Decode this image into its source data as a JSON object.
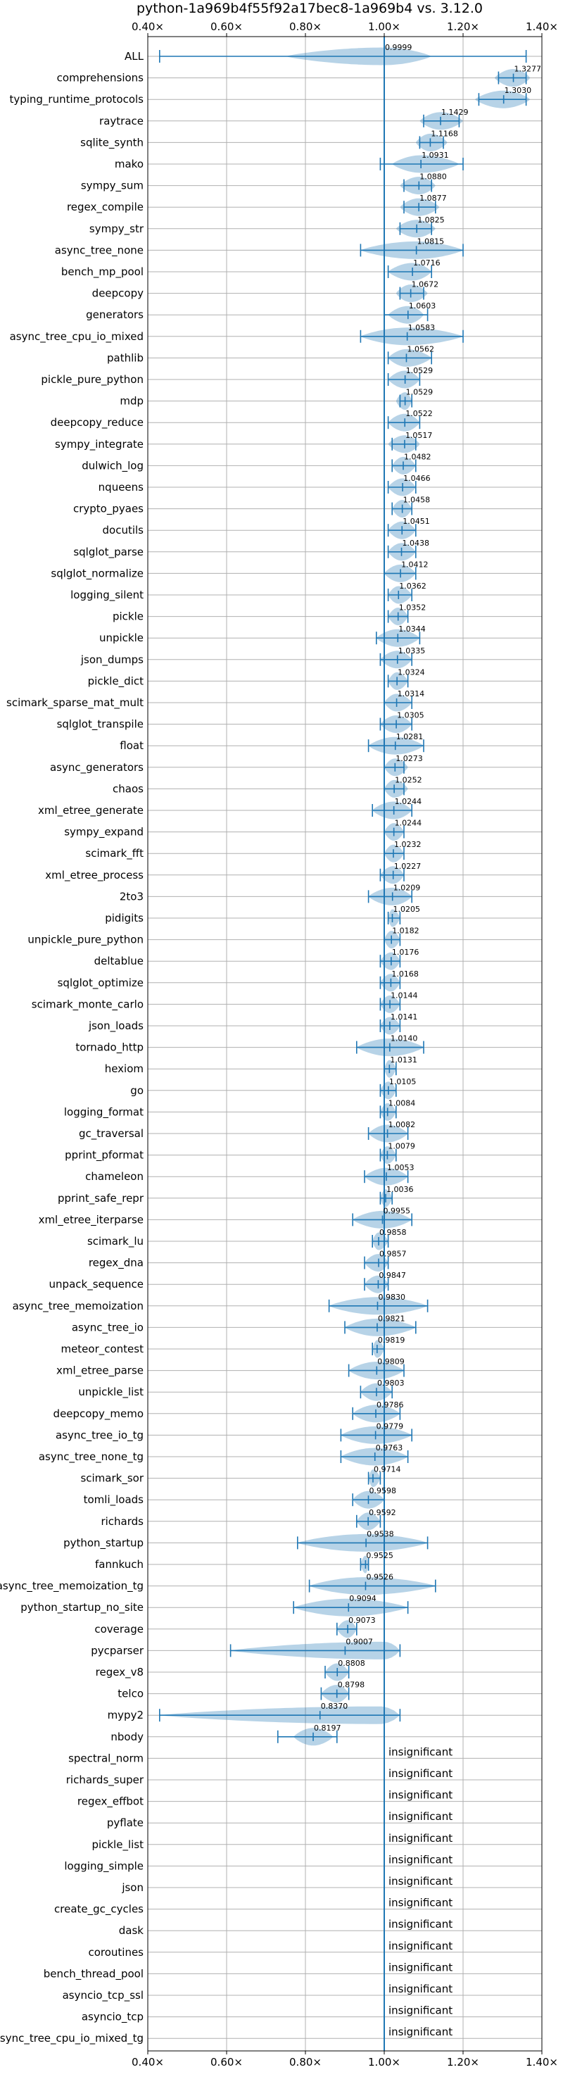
{
  "chart_data": {
    "type": "violin",
    "title": "python-1a969b4f55f92a17bec8-1a969b4 vs. 3.12.0",
    "xlim": [
      0.4,
      1.4
    ],
    "x_ticks": [
      0.4,
      0.6,
      0.8,
      1.0,
      1.2,
      1.4
    ],
    "x_tick_labels": [
      "0.40×",
      "0.60×",
      "0.80×",
      "1.00×",
      "1.20×",
      "1.40×"
    ],
    "reference_line": 1.0,
    "grid": true,
    "color": "#1f77b4",
    "insignificant_text": "insignificant",
    "benchmarks": [
      {
        "name": "ALL",
        "value": 0.9999,
        "label": "0.9999",
        "min": 0.43,
        "max": 1.36,
        "violin_lo": 0.75,
        "violin_hi": 1.12,
        "peak": 0.999
      },
      {
        "name": "comprehensions",
        "value": 1.3277,
        "label": "1.3277",
        "min": 1.29,
        "max": 1.36,
        "violin_lo": 1.28,
        "violin_hi": 1.37
      },
      {
        "name": "typing_runtime_protocols",
        "value": 1.303,
        "label": "1.3030",
        "min": 1.24,
        "max": 1.36,
        "violin_lo": 1.23,
        "violin_hi": 1.37
      },
      {
        "name": "raytrace",
        "value": 1.1429,
        "label": "1.1429",
        "min": 1.1,
        "max": 1.19,
        "violin_lo": 1.09,
        "violin_hi": 1.2
      },
      {
        "name": "sqlite_synth",
        "value": 1.1168,
        "label": "1.1168",
        "min": 1.09,
        "max": 1.15,
        "violin_lo": 1.08,
        "violin_hi": 1.16
      },
      {
        "name": "mako",
        "value": 1.0931,
        "label": "1.0931",
        "min": 0.99,
        "max": 1.2,
        "violin_lo": 1.02,
        "violin_hi": 1.19
      },
      {
        "name": "sympy_sum",
        "value": 1.088,
        "label": "1.0880",
        "min": 1.05,
        "max": 1.12,
        "violin_lo": 1.04,
        "violin_hi": 1.13
      },
      {
        "name": "regex_compile",
        "value": 1.0877,
        "label": "1.0877",
        "min": 1.05,
        "max": 1.13,
        "violin_lo": 1.04,
        "violin_hi": 1.14
      },
      {
        "name": "sympy_str",
        "value": 1.0825,
        "label": "1.0825",
        "min": 1.04,
        "max": 1.12,
        "violin_lo": 1.03,
        "violin_hi": 1.13
      },
      {
        "name": "async_tree_none",
        "value": 1.0815,
        "label": "1.0815",
        "min": 0.94,
        "max": 1.2,
        "violin_lo": 0.94,
        "violin_hi": 1.2
      },
      {
        "name": "bench_mp_pool",
        "value": 1.0716,
        "label": "1.0716",
        "min": 1.01,
        "max": 1.12,
        "violin_lo": 1.01,
        "violin_hi": 1.12
      },
      {
        "name": "deepcopy",
        "value": 1.0672,
        "label": "1.0672",
        "min": 1.04,
        "max": 1.1,
        "violin_lo": 1.03,
        "violin_hi": 1.11
      },
      {
        "name": "generators",
        "value": 1.0603,
        "label": "1.0603",
        "min": 1.0,
        "max": 1.11,
        "violin_lo": 1.01,
        "violin_hi": 1.1
      },
      {
        "name": "async_tree_cpu_io_mixed",
        "value": 1.0583,
        "label": "1.0583",
        "min": 0.94,
        "max": 1.2,
        "violin_lo": 0.94,
        "violin_hi": 1.2
      },
      {
        "name": "pathlib",
        "value": 1.0562,
        "label": "1.0562",
        "min": 1.01,
        "max": 1.12,
        "violin_lo": 1.01,
        "violin_hi": 1.12
      },
      {
        "name": "pickle_pure_python",
        "value": 1.0529,
        "label": "1.0529",
        "min": 1.01,
        "max": 1.09,
        "violin_lo": 1.01,
        "violin_hi": 1.09
      },
      {
        "name": "mdp",
        "value": 1.0529,
        "label": "1.0529",
        "min": 1.04,
        "max": 1.07,
        "violin_lo": 1.03,
        "violin_hi": 1.07
      },
      {
        "name": "deepcopy_reduce",
        "value": 1.0522,
        "label": "1.0522",
        "min": 1.01,
        "max": 1.09,
        "violin_lo": 1.01,
        "violin_hi": 1.09
      },
      {
        "name": "sympy_integrate",
        "value": 1.0517,
        "label": "1.0517",
        "min": 1.02,
        "max": 1.08,
        "violin_lo": 1.01,
        "violin_hi": 1.09
      },
      {
        "name": "dulwich_log",
        "value": 1.0482,
        "label": "1.0482",
        "min": 1.02,
        "max": 1.08,
        "violin_lo": 1.02,
        "violin_hi": 1.08
      },
      {
        "name": "nqueens",
        "value": 1.0466,
        "label": "1.0466",
        "min": 1.01,
        "max": 1.08,
        "violin_lo": 1.01,
        "violin_hi": 1.08
      },
      {
        "name": "crypto_pyaes",
        "value": 1.0458,
        "label": "1.0458",
        "min": 1.02,
        "max": 1.07,
        "violin_lo": 1.02,
        "violin_hi": 1.07
      },
      {
        "name": "docutils",
        "value": 1.0451,
        "label": "1.0451",
        "min": 1.01,
        "max": 1.08,
        "violin_lo": 1.01,
        "violin_hi": 1.08
      },
      {
        "name": "sqlglot_parse",
        "value": 1.0438,
        "label": "1.0438",
        "min": 1.01,
        "max": 1.08,
        "violin_lo": 1.01,
        "violin_hi": 1.08
      },
      {
        "name": "sqlglot_normalize",
        "value": 1.0412,
        "label": "1.0412",
        "min": 1.0,
        "max": 1.08,
        "violin_lo": 1.0,
        "violin_hi": 1.08
      },
      {
        "name": "logging_silent",
        "value": 1.0362,
        "label": "1.0362",
        "min": 1.01,
        "max": 1.07,
        "violin_lo": 1.01,
        "violin_hi": 1.07
      },
      {
        "name": "pickle",
        "value": 1.0352,
        "label": "1.0352",
        "min": 1.01,
        "max": 1.06,
        "violin_lo": 1.01,
        "violin_hi": 1.06
      },
      {
        "name": "unpickle",
        "value": 1.0344,
        "label": "1.0344",
        "min": 0.98,
        "max": 1.09,
        "violin_lo": 0.98,
        "violin_hi": 1.09
      },
      {
        "name": "json_dumps",
        "value": 1.0335,
        "label": "1.0335",
        "min": 0.99,
        "max": 1.07,
        "violin_lo": 0.99,
        "violin_hi": 1.07
      },
      {
        "name": "pickle_dict",
        "value": 1.0324,
        "label": "1.0324",
        "min": 1.01,
        "max": 1.06,
        "violin_lo": 1.01,
        "violin_hi": 1.06
      },
      {
        "name": "scimark_sparse_mat_mult",
        "value": 1.0314,
        "label": "1.0314",
        "min": 1.0,
        "max": 1.07,
        "violin_lo": 1.0,
        "violin_hi": 1.07
      },
      {
        "name": "sqlglot_transpile",
        "value": 1.0305,
        "label": "1.0305",
        "min": 0.99,
        "max": 1.07,
        "violin_lo": 0.99,
        "violin_hi": 1.07
      },
      {
        "name": "float",
        "value": 1.0281,
        "label": "1.0281",
        "min": 0.96,
        "max": 1.1,
        "violin_lo": 0.96,
        "violin_hi": 1.1
      },
      {
        "name": "async_generators",
        "value": 1.0273,
        "label": "1.0273",
        "min": 1.0,
        "max": 1.05,
        "violin_lo": 1.0,
        "violin_hi": 1.06
      },
      {
        "name": "chaos",
        "value": 1.0252,
        "label": "1.0252",
        "min": 1.0,
        "max": 1.05,
        "violin_lo": 1.0,
        "violin_hi": 1.06
      },
      {
        "name": "xml_etree_generate",
        "value": 1.0244,
        "label": "1.0244",
        "min": 0.97,
        "max": 1.07,
        "violin_lo": 0.97,
        "violin_hi": 1.07
      },
      {
        "name": "sympy_expand",
        "value": 1.0244,
        "label": "1.0244",
        "min": 1.0,
        "max": 1.05,
        "violin_lo": 1.0,
        "violin_hi": 1.05
      },
      {
        "name": "scimark_fft",
        "value": 1.0232,
        "label": "1.0232",
        "min": 1.0,
        "max": 1.05,
        "violin_lo": 1.0,
        "violin_hi": 1.05
      },
      {
        "name": "xml_etree_process",
        "value": 1.0227,
        "label": "1.0227",
        "min": 0.99,
        "max": 1.05,
        "violin_lo": 0.99,
        "violin_hi": 1.05
      },
      {
        "name": "2to3",
        "value": 1.0209,
        "label": "1.0209",
        "min": 0.96,
        "max": 1.07,
        "violin_lo": 0.96,
        "violin_hi": 1.07
      },
      {
        "name": "pidigits",
        "value": 1.0205,
        "label": "1.0205",
        "min": 1.01,
        "max": 1.04,
        "violin_lo": 1.01,
        "violin_hi": 1.04
      },
      {
        "name": "unpickle_pure_python",
        "value": 1.0182,
        "label": "1.0182",
        "min": 1.0,
        "max": 1.04,
        "violin_lo": 1.0,
        "violin_hi": 1.04
      },
      {
        "name": "deltablue",
        "value": 1.0176,
        "label": "1.0176",
        "min": 0.99,
        "max": 1.04,
        "violin_lo": 0.99,
        "violin_hi": 1.04
      },
      {
        "name": "sqlglot_optimize",
        "value": 1.0168,
        "label": "1.0168",
        "min": 0.99,
        "max": 1.04,
        "violin_lo": 0.99,
        "violin_hi": 1.04
      },
      {
        "name": "scimark_monte_carlo",
        "value": 1.0144,
        "label": "1.0144",
        "min": 0.99,
        "max": 1.04,
        "violin_lo": 0.99,
        "violin_hi": 1.04
      },
      {
        "name": "json_loads",
        "value": 1.0141,
        "label": "1.0141",
        "min": 0.99,
        "max": 1.04,
        "violin_lo": 0.99,
        "violin_hi": 1.04
      },
      {
        "name": "tornado_http",
        "value": 1.014,
        "label": "1.0140",
        "min": 0.93,
        "max": 1.1,
        "violin_lo": 0.93,
        "violin_hi": 1.1
      },
      {
        "name": "hexiom",
        "value": 1.0131,
        "label": "1.0131",
        "min": 1.0,
        "max": 1.03,
        "violin_lo": 1.0,
        "violin_hi": 1.03
      },
      {
        "name": "go",
        "value": 1.0105,
        "label": "1.0105",
        "min": 0.99,
        "max": 1.03,
        "violin_lo": 0.99,
        "violin_hi": 1.03
      },
      {
        "name": "logging_format",
        "value": 1.0084,
        "label": "1.0084",
        "min": 0.99,
        "max": 1.03,
        "violin_lo": 0.99,
        "violin_hi": 1.03
      },
      {
        "name": "gc_traversal",
        "value": 1.0082,
        "label": "1.0082",
        "min": 0.96,
        "max": 1.06,
        "violin_lo": 0.96,
        "violin_hi": 1.06
      },
      {
        "name": "pprint_pformat",
        "value": 1.0079,
        "label": "1.0079",
        "min": 0.99,
        "max": 1.03,
        "violin_lo": 0.99,
        "violin_hi": 1.03
      },
      {
        "name": "chameleon",
        "value": 1.0053,
        "label": "1.0053",
        "min": 0.95,
        "max": 1.06,
        "violin_lo": 0.95,
        "violin_hi": 1.06
      },
      {
        "name": "pprint_safe_repr",
        "value": 1.0036,
        "label": "1.0036",
        "min": 0.99,
        "max": 1.02,
        "violin_lo": 0.99,
        "violin_hi": 1.02
      },
      {
        "name": "xml_etree_iterparse",
        "value": 0.9955,
        "label": "0.9955",
        "min": 0.92,
        "max": 1.07,
        "violin_lo": 0.92,
        "violin_hi": 1.07
      },
      {
        "name": "scimark_lu",
        "value": 0.9858,
        "label": "0.9858",
        "min": 0.97,
        "max": 1.01,
        "violin_lo": 0.97,
        "violin_hi": 1.01
      },
      {
        "name": "regex_dna",
        "value": 0.9857,
        "label": "0.9857",
        "min": 0.95,
        "max": 1.01,
        "violin_lo": 0.95,
        "violin_hi": 1.01
      },
      {
        "name": "unpack_sequence",
        "value": 0.9847,
        "label": "0.9847",
        "min": 0.95,
        "max": 1.01,
        "violin_lo": 0.95,
        "violin_hi": 1.01
      },
      {
        "name": "async_tree_memoization",
        "value": 0.983,
        "label": "0.9830",
        "min": 0.86,
        "max": 1.11,
        "violin_lo": 0.86,
        "violin_hi": 1.11
      },
      {
        "name": "async_tree_io",
        "value": 0.9821,
        "label": "0.9821",
        "min": 0.9,
        "max": 1.08,
        "violin_lo": 0.9,
        "violin_hi": 1.08
      },
      {
        "name": "meteor_contest",
        "value": 0.9819,
        "label": "0.9819",
        "min": 0.97,
        "max": 1.0,
        "violin_lo": 0.97,
        "violin_hi": 1.0
      },
      {
        "name": "xml_etree_parse",
        "value": 0.9809,
        "label": "0.9809",
        "min": 0.91,
        "max": 1.05,
        "violin_lo": 0.91,
        "violin_hi": 1.05
      },
      {
        "name": "unpickle_list",
        "value": 0.9803,
        "label": "0.9803",
        "min": 0.94,
        "max": 1.02,
        "violin_lo": 0.94,
        "violin_hi": 1.02
      },
      {
        "name": "deepcopy_memo",
        "value": 0.9786,
        "label": "0.9786",
        "min": 0.92,
        "max": 1.04,
        "violin_lo": 0.92,
        "violin_hi": 1.04
      },
      {
        "name": "async_tree_io_tg",
        "value": 0.9779,
        "label": "0.9779",
        "min": 0.89,
        "max": 1.07,
        "violin_lo": 0.89,
        "violin_hi": 1.07
      },
      {
        "name": "async_tree_none_tg",
        "value": 0.9763,
        "label": "0.9763",
        "min": 0.89,
        "max": 1.06,
        "violin_lo": 0.89,
        "violin_hi": 1.06
      },
      {
        "name": "scimark_sor",
        "value": 0.9714,
        "label": "0.9714",
        "min": 0.96,
        "max": 0.99,
        "violin_lo": 0.96,
        "violin_hi": 0.99
      },
      {
        "name": "tomli_loads",
        "value": 0.9598,
        "label": "0.9598",
        "min": 0.92,
        "max": 1.0,
        "violin_lo": 0.92,
        "violin_hi": 1.0
      },
      {
        "name": "richards",
        "value": 0.9592,
        "label": "0.9592",
        "min": 0.93,
        "max": 0.99,
        "violin_lo": 0.93,
        "violin_hi": 0.99
      },
      {
        "name": "python_startup",
        "value": 0.9538,
        "label": "0.9538",
        "min": 0.78,
        "max": 1.11,
        "violin_lo": 0.78,
        "violin_hi": 1.11
      },
      {
        "name": "fannkuch",
        "value": 0.9525,
        "label": "0.9525",
        "min": 0.94,
        "max": 0.96,
        "violin_lo": 0.94,
        "violin_hi": 0.96
      },
      {
        "name": "async_tree_memoization_tg",
        "value": 0.9526,
        "label": "0.9526",
        "min": 0.81,
        "max": 1.13,
        "violin_lo": 0.81,
        "violin_hi": 1.13
      },
      {
        "name": "python_startup_no_site",
        "value": 0.9094,
        "label": "0.9094",
        "min": 0.77,
        "max": 1.06,
        "violin_lo": 0.77,
        "violin_hi": 1.06
      },
      {
        "name": "coverage",
        "value": 0.9073,
        "label": "0.9073",
        "min": 0.88,
        "max": 0.93,
        "violin_lo": 0.88,
        "violin_hi": 0.93
      },
      {
        "name": "pycparser",
        "value": 0.9007,
        "label": "0.9007",
        "min": 0.61,
        "max": 1.04,
        "violin_lo": 0.61,
        "violin_hi": 1.04,
        "peak": 1.0
      },
      {
        "name": "regex_v8",
        "value": 0.8808,
        "label": "0.8808",
        "min": 0.85,
        "max": 0.91,
        "violin_lo": 0.85,
        "violin_hi": 0.91
      },
      {
        "name": "telco",
        "value": 0.8798,
        "label": "0.8798",
        "min": 0.84,
        "max": 0.91,
        "violin_lo": 0.84,
        "violin_hi": 0.91
      },
      {
        "name": "mypy2",
        "value": 0.837,
        "label": "0.8370",
        "min": 0.43,
        "max": 1.04,
        "violin_lo": 0.43,
        "violin_hi": 1.04,
        "peak": 0.99
      },
      {
        "name": "nbody",
        "value": 0.8197,
        "label": "0.8197",
        "min": 0.73,
        "max": 0.88,
        "violin_lo": 0.77,
        "violin_hi": 0.87
      },
      {
        "name": "spectral_norm",
        "insignificant": true
      },
      {
        "name": "richards_super",
        "insignificant": true
      },
      {
        "name": "regex_effbot",
        "insignificant": true
      },
      {
        "name": "pyflate",
        "insignificant": true
      },
      {
        "name": "pickle_list",
        "insignificant": true
      },
      {
        "name": "logging_simple",
        "insignificant": true
      },
      {
        "name": "json",
        "insignificant": true
      },
      {
        "name": "create_gc_cycles",
        "insignificant": true
      },
      {
        "name": "dask",
        "insignificant": true
      },
      {
        "name": "coroutines",
        "insignificant": true
      },
      {
        "name": "bench_thread_pool",
        "insignificant": true
      },
      {
        "name": "asyncio_tcp_ssl",
        "insignificant": true
      },
      {
        "name": "asyncio_tcp",
        "insignificant": true
      },
      {
        "name": "async_tree_cpu_io_mixed_tg",
        "insignificant": true
      }
    ]
  }
}
